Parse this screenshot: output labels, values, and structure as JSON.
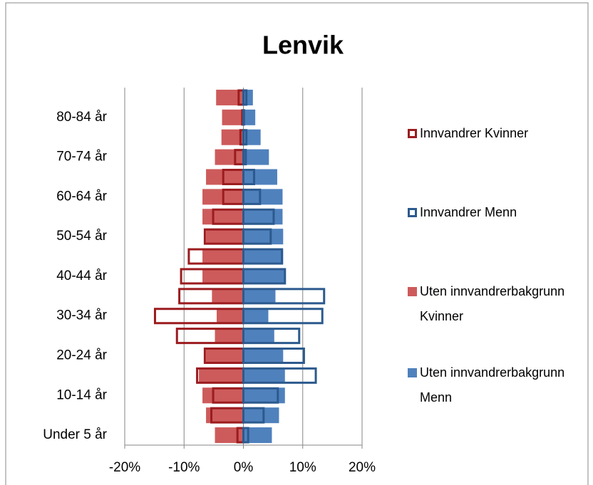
{
  "chart_data": {
    "type": "pyramid",
    "title": "Lenvik",
    "categories": [
      "Under 5 år",
      null,
      "10-14 år",
      null,
      "20-24 år",
      null,
      "30-34 år",
      null,
      "40-44 år",
      null,
      "50-54 år",
      null,
      "60-64 år",
      null,
      "70-74 år",
      null,
      "80-84 år",
      null
    ],
    "series": [
      {
        "name": "Innvandrer Kvinner",
        "color": "#9b1c1f",
        "filled": false,
        "values": [
          -1.0,
          -5.4,
          -5.1,
          -7.8,
          -6.5,
          -11.2,
          -14.9,
          -10.8,
          -10.5,
          -9.2,
          -6.5,
          -5.1,
          -3.4,
          -3.4,
          -1.4,
          -0.5,
          -0.2,
          -0.8
        ]
      },
      {
        "name": "Innvandrer Menn",
        "color": "#2c5a8e",
        "filled": false,
        "values": [
          0.8,
          3.4,
          5.8,
          12.2,
          10.2,
          9.4,
          13.3,
          13.6,
          7.0,
          6.5,
          4.6,
          5.1,
          2.8,
          1.8,
          0.4,
          0.5,
          0.1,
          0.5
        ]
      },
      {
        "name": "Uten innvandrerbakgrunn Kvinner",
        "color": "#cd5b5b",
        "filled": true,
        "values": [
          -4.8,
          -6.3,
          -6.9,
          -7.5,
          -6.3,
          -4.8,
          -4.5,
          -5.3,
          -6.9,
          -6.9,
          -6.3,
          -6.9,
          -6.9,
          -6.3,
          -4.8,
          -3.7,
          -3.6,
          -4.6
        ]
      },
      {
        "name": "Uten innvandrerbakgrunn Menn",
        "color": "#4f81bd",
        "filled": true,
        "values": [
          4.8,
          6.0,
          7.0,
          7.0,
          6.7,
          5.2,
          4.2,
          5.4,
          7.0,
          6.7,
          6.7,
          6.6,
          6.6,
          5.7,
          4.3,
          2.9,
          2.0,
          1.6
        ]
      }
    ],
    "xlim": [
      -20,
      20
    ],
    "xticks": [
      {
        "value": -20,
        "label": "-20%"
      },
      {
        "value": -10,
        "label": "-10%"
      },
      {
        "value": 0,
        "label": "0%"
      },
      {
        "value": 10,
        "label": "10%"
      },
      {
        "value": 20,
        "label": "20%"
      }
    ],
    "grid": true,
    "legend": "right"
  }
}
